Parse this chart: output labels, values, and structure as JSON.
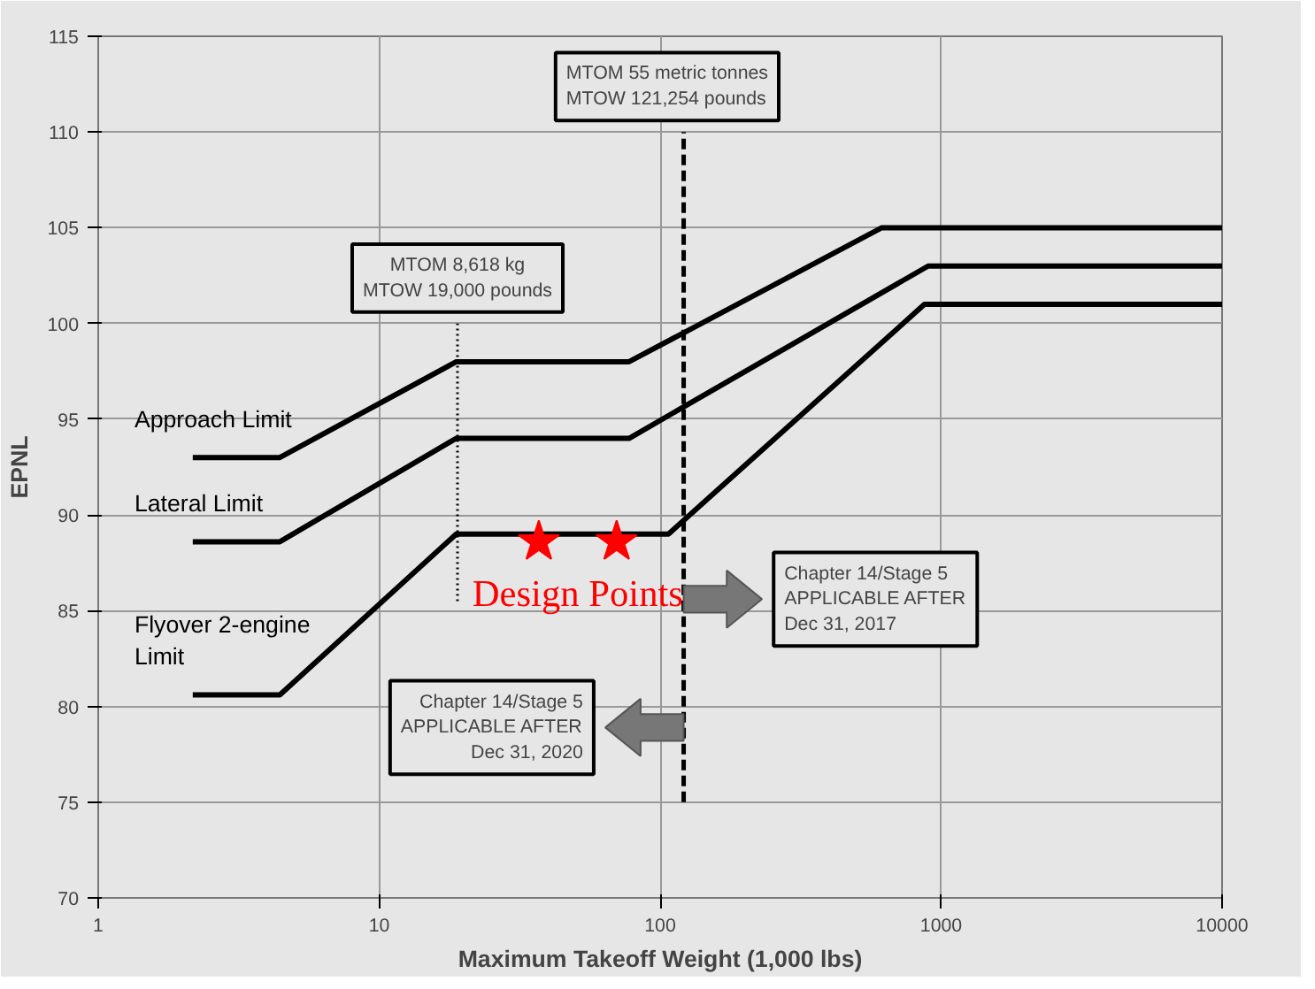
{
  "chart_data": {
    "type": "line",
    "xlabel": "Maximum Takeoff Weight (1,000 lbs)",
    "ylabel": "EPNL",
    "series": [
      {
        "name": "Approach Limit",
        "color": "#000000",
        "x": [
          2.17,
          4.43,
          18.8,
          77.5,
          615,
          10000
        ],
        "values": [
          93,
          93,
          98,
          98,
          105,
          105
        ]
      },
      {
        "name": "Lateral Limit",
        "color": "#000000",
        "x": [
          2.17,
          4.43,
          18.8,
          77.5,
          899,
          10000
        ],
        "values": [
          88.6,
          88.6,
          94,
          94,
          103,
          103
        ]
      },
      {
        "name": "Flyover 2-engine Limit",
        "color": "#000000",
        "x": [
          2.17,
          4.43,
          18.8,
          107,
          872,
          10000
        ],
        "values": [
          80.6,
          80.6,
          89,
          89,
          101,
          101
        ]
      },
      {
        "color": "#000000",
        "line_style": "dotted",
        "x": [
          19,
          19
        ],
        "values": [
          85.5,
          100
        ]
      },
      {
        "color": "#000000",
        "line_style": "dashed",
        "x": [
          121.254,
          121.254
        ],
        "values": [
          75,
          110
        ]
      },
      {
        "name": "Design Points",
        "type": "scatter",
        "marker": "star",
        "color": "#ff0000",
        "x": [
          37,
          70
        ],
        "values": [
          88.6,
          88.6
        ]
      }
    ],
    "annotations": [
      "MTOM 8,618 kg\nMTOW 19,000 pounds",
      "MTOM 55 metric tonnes\nMTOW 121,254 pounds",
      "Chapter 14/Stage 5\nAPPLICABLE AFTER\nDec 31, 2017",
      "Chapter 14/Stage 5\nAPPLICABLE AFTER\nDec 31, 2020"
    ],
    "log": "x",
    "xlim": [
      1,
      10000
    ],
    "xticks": [
      1,
      10,
      100,
      1000,
      10000
    ],
    "ylim": [
      70,
      115
    ],
    "yticks": [
      70,
      75,
      80,
      85,
      90,
      95,
      100,
      105,
      110,
      115
    ],
    "grid": true,
    "line_style": "solid"
  }
}
